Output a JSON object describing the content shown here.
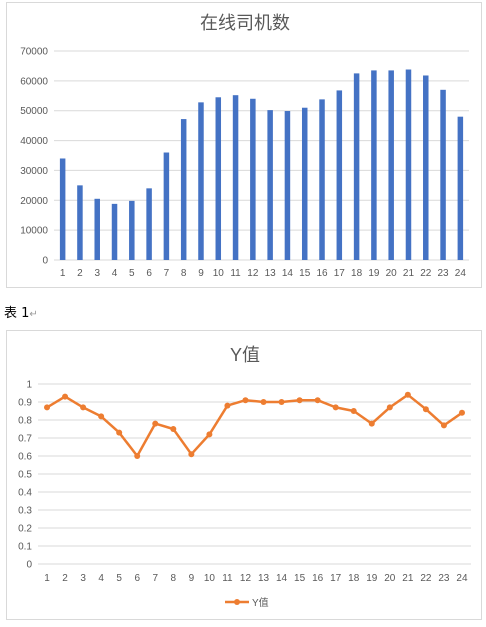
{
  "chart_data": [
    {
      "type": "bar",
      "title": "在线司机数",
      "categories": [
        "1",
        "2",
        "3",
        "4",
        "5",
        "6",
        "7",
        "8",
        "9",
        "10",
        "11",
        "12",
        "13",
        "14",
        "15",
        "16",
        "17",
        "18",
        "19",
        "20",
        "21",
        "22",
        "23",
        "24"
      ],
      "values": [
        34000,
        25000,
        20500,
        18800,
        19800,
        24000,
        36000,
        47200,
        52800,
        54500,
        55200,
        54000,
        50200,
        49900,
        51000,
        53800,
        56800,
        62500,
        63500,
        63500,
        63800,
        61800,
        57000,
        48000
      ],
      "ylim": [
        0,
        70000
      ],
      "yticks": [
        "0",
        "10000",
        "20000",
        "30000",
        "40000",
        "50000",
        "60000",
        "70000"
      ],
      "color": "#4472c4",
      "grid": true
    },
    {
      "type": "line",
      "title": "Y值",
      "categories": [
        "1",
        "2",
        "3",
        "4",
        "5",
        "6",
        "7",
        "8",
        "9",
        "10",
        "11",
        "12",
        "13",
        "14",
        "15",
        "16",
        "17",
        "18",
        "19",
        "20",
        "21",
        "22",
        "23",
        "24"
      ],
      "series": [
        {
          "name": "Y值",
          "values": [
            0.87,
            0.93,
            0.87,
            0.82,
            0.73,
            0.6,
            0.78,
            0.75,
            0.61,
            0.72,
            0.88,
            0.91,
            0.9,
            0.9,
            0.91,
            0.91,
            0.87,
            0.85,
            0.78,
            0.87,
            0.94,
            0.86,
            0.77,
            0.84
          ]
        }
      ],
      "ylim": [
        0,
        1
      ],
      "yticks": [
        "0",
        "0.1",
        "0.2",
        "0.3",
        "0.4",
        "0.5",
        "0.6",
        "0.7",
        "0.8",
        "0.9",
        "1"
      ],
      "color": "#ed7d31",
      "grid": true,
      "legend_position": "bottom"
    }
  ],
  "caption": {
    "text": "表 1",
    "mark": "↵"
  }
}
